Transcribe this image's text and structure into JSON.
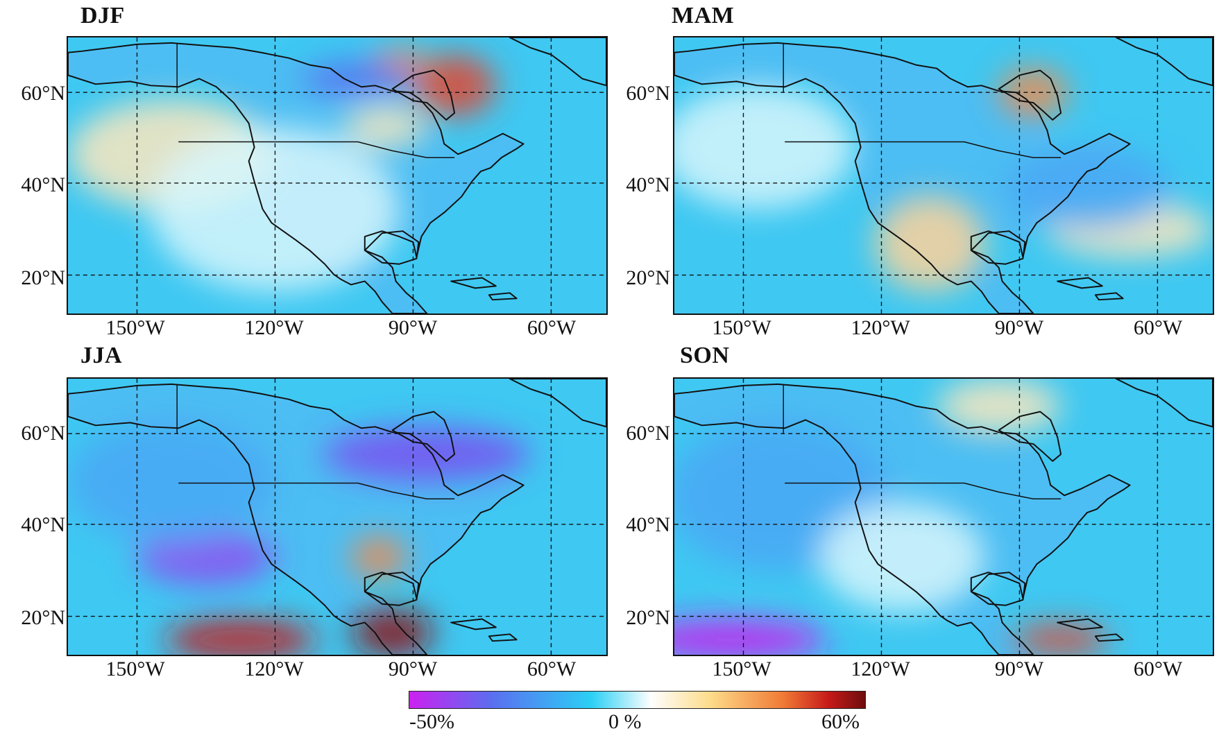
{
  "panels": [
    {
      "title": "DJF",
      "tint": "#fde8bd"
    },
    {
      "title": "MAM",
      "tint": "#fde8bd"
    },
    {
      "title": "JJA",
      "tint": "#7a50f0"
    },
    {
      "title": "SON",
      "tint": "#4aa7f5"
    }
  ],
  "axes": {
    "lat_ticks": [
      "60°N",
      "40°N",
      "20°N"
    ],
    "lon_ticks": [
      "150°W",
      "120°W",
      "90°W",
      "60°W"
    ]
  },
  "colorbar": {
    "min_label": "-50%",
    "mid_label": "0 %",
    "max_label": "60%",
    "colors": [
      "#cc20f0",
      "#5b6ef0",
      "#2bd0f5",
      "#fefefe",
      "#fddc8a",
      "#f07a35",
      "#c61a1a",
      "#6e0d0d"
    ]
  },
  "colors": {
    "ocean_base": "#3fc8f2",
    "land_base": "#55b8f3",
    "coast": "#111111"
  }
}
